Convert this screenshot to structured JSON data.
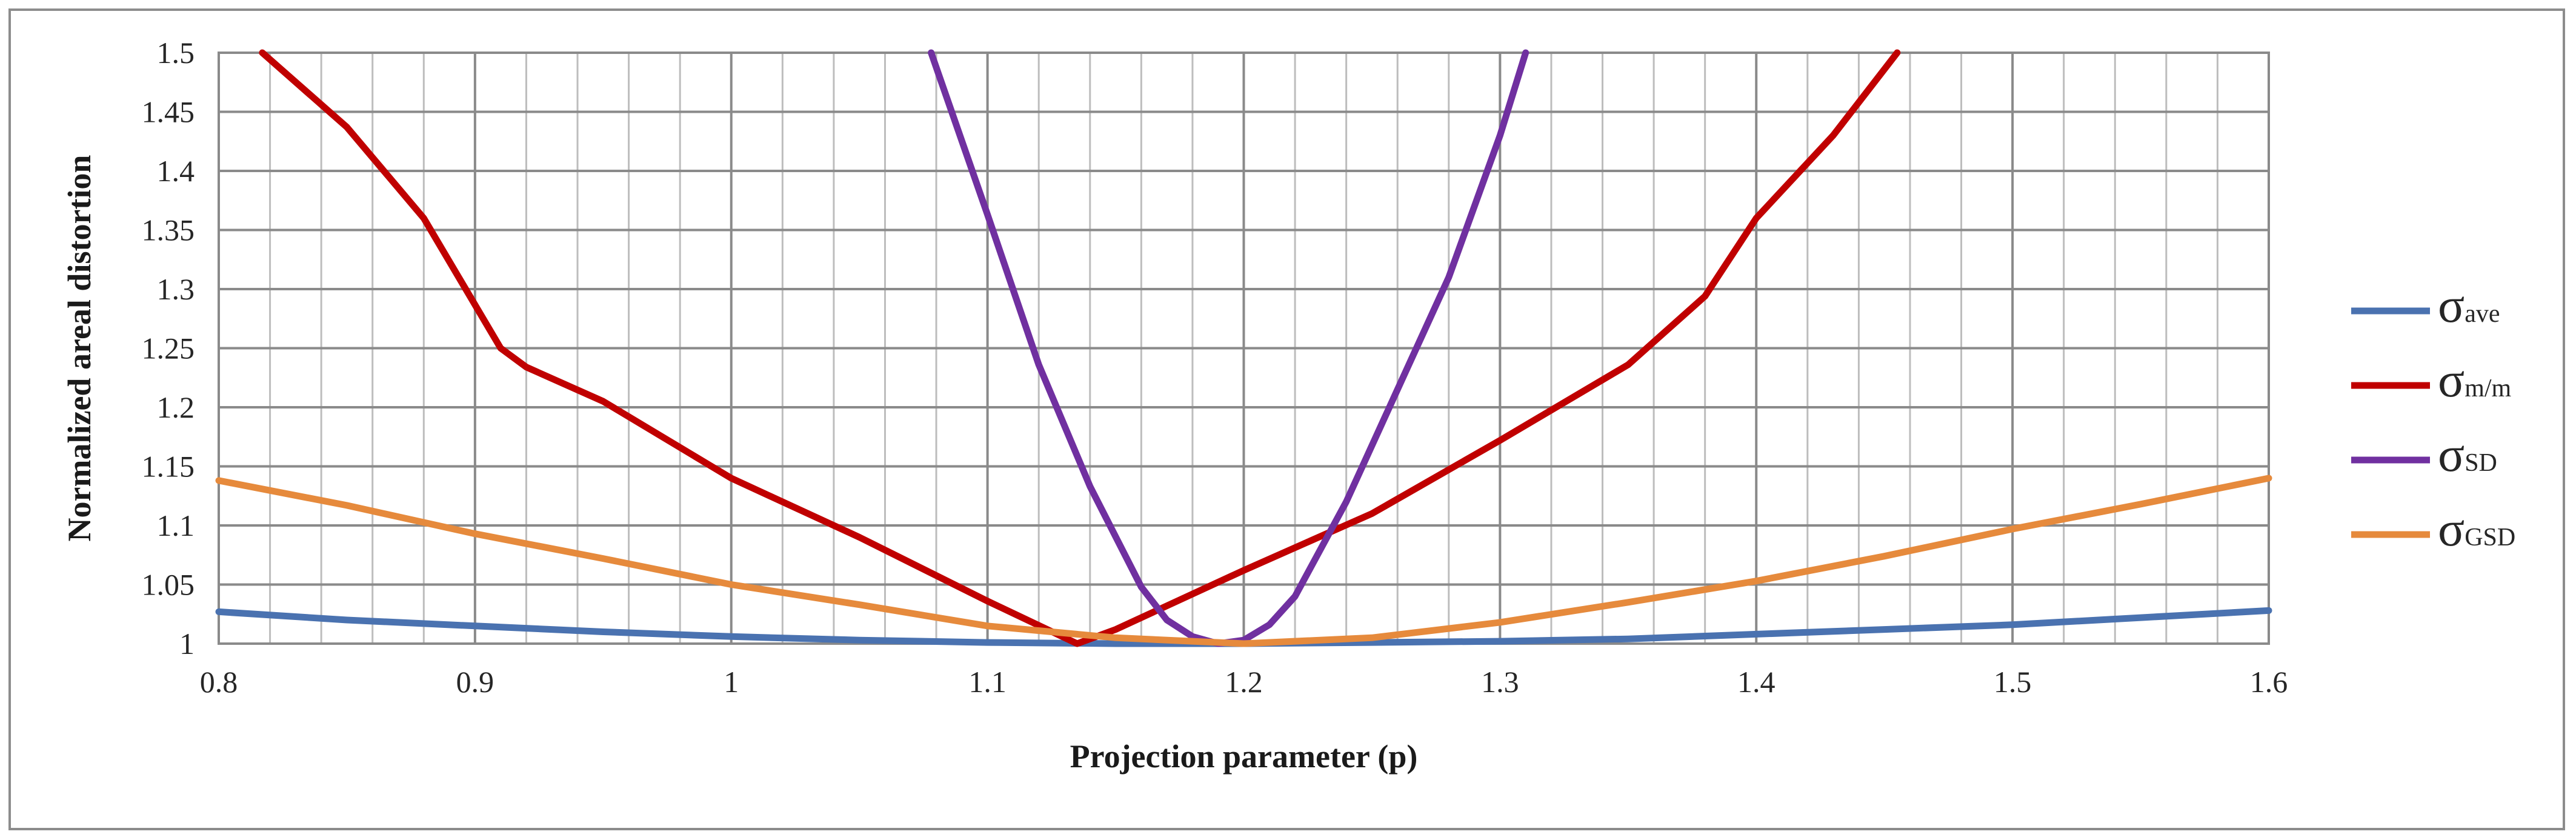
{
  "chart_data": {
    "type": "line",
    "title": "",
    "xlabel": "Projection parameter (p)",
    "ylabel": "Normalized areal distortion",
    "xlim": [
      0.8,
      1.6
    ],
    "ylim": [
      1,
      1.5
    ],
    "x_ticks": [
      "0.8",
      "0.9",
      "1",
      "1.1",
      "1.2",
      "1.3",
      "1.4",
      "1.5",
      "1.6"
    ],
    "y_ticks": [
      "1",
      "1.05",
      "1.1",
      "1.15",
      "1.2",
      "1.25",
      "1.3",
      "1.35",
      "1.4",
      "1.45",
      "1.5"
    ],
    "grid": true,
    "legend_position": "right",
    "series": [
      {
        "name": "σave",
        "symbol": "σ",
        "subscript": "ave",
        "color": "#4a72b0",
        "points": [
          [
            0.8,
            1.027
          ],
          [
            0.85,
            1.02
          ],
          [
            0.9,
            1.015
          ],
          [
            0.95,
            1.01
          ],
          [
            1.0,
            1.006
          ],
          [
            1.05,
            1.003
          ],
          [
            1.1,
            1.001
          ],
          [
            1.15,
            1.0
          ],
          [
            1.2,
            1.0
          ],
          [
            1.25,
            1.001
          ],
          [
            1.3,
            1.002
          ],
          [
            1.35,
            1.004
          ],
          [
            1.4,
            1.008
          ],
          [
            1.45,
            1.012
          ],
          [
            1.5,
            1.016
          ],
          [
            1.55,
            1.022
          ],
          [
            1.6,
            1.028
          ]
        ]
      },
      {
        "name": "σm/m",
        "symbol": "σ",
        "subscript": "m/m",
        "color": "#c00000",
        "points": [
          [
            0.817,
            1.5
          ],
          [
            0.85,
            1.437
          ],
          [
            0.88,
            1.36
          ],
          [
            0.91,
            1.25
          ],
          [
            0.92,
            1.234
          ],
          [
            0.95,
            1.205
          ],
          [
            1.0,
            1.14
          ],
          [
            1.05,
            1.09
          ],
          [
            1.1,
            1.036
          ],
          [
            1.135,
            1.0
          ],
          [
            1.15,
            1.012
          ],
          [
            1.2,
            1.062
          ],
          [
            1.25,
            1.11
          ],
          [
            1.3,
            1.172
          ],
          [
            1.35,
            1.236
          ],
          [
            1.38,
            1.294
          ],
          [
            1.4,
            1.36
          ],
          [
            1.43,
            1.43
          ],
          [
            1.455,
            1.5
          ]
        ]
      },
      {
        "name": "σSD",
        "symbol": "σ",
        "subscript": "SD",
        "color": "#7030a0",
        "points": [
          [
            1.078,
            1.5
          ],
          [
            1.1,
            1.363
          ],
          [
            1.12,
            1.236
          ],
          [
            1.14,
            1.133
          ],
          [
            1.16,
            1.048
          ],
          [
            1.17,
            1.02
          ],
          [
            1.18,
            1.006
          ],
          [
            1.19,
            1.0
          ],
          [
            1.2,
            1.003
          ],
          [
            1.21,
            1.016
          ],
          [
            1.22,
            1.04
          ],
          [
            1.24,
            1.12
          ],
          [
            1.26,
            1.215
          ],
          [
            1.28,
            1.31
          ],
          [
            1.3,
            1.43
          ],
          [
            1.31,
            1.5
          ]
        ]
      },
      {
        "name": "σGSD",
        "symbol": "σ",
        "subscript": "GSD",
        "color": "#e68a3c",
        "points": [
          [
            0.8,
            1.138
          ],
          [
            0.85,
            1.117
          ],
          [
            0.9,
            1.093
          ],
          [
            0.95,
            1.072
          ],
          [
            1.0,
            1.05
          ],
          [
            1.05,
            1.033
          ],
          [
            1.1,
            1.015
          ],
          [
            1.15,
            1.005
          ],
          [
            1.2,
            1.0
          ],
          [
            1.25,
            1.005
          ],
          [
            1.3,
            1.018
          ],
          [
            1.35,
            1.035
          ],
          [
            1.4,
            1.053
          ],
          [
            1.45,
            1.074
          ],
          [
            1.5,
            1.097
          ],
          [
            1.55,
            1.118
          ],
          [
            1.6,
            1.14
          ]
        ]
      }
    ]
  }
}
